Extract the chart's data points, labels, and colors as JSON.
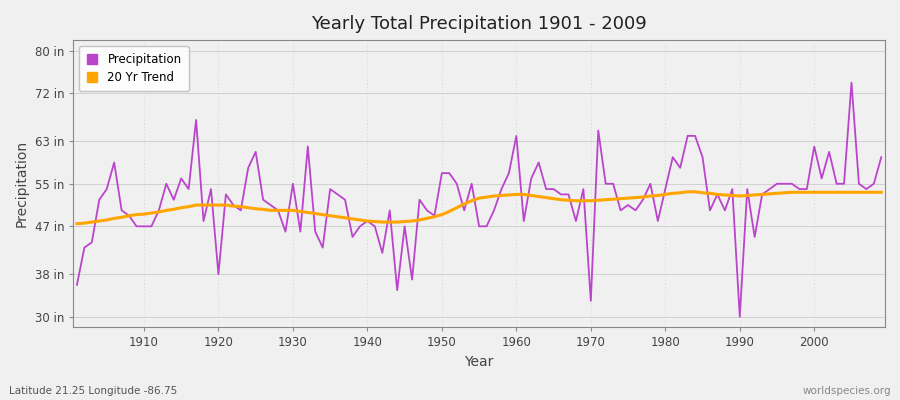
{
  "title": "Yearly Total Precipitation 1901 - 2009",
  "xlabel": "Year",
  "ylabel": "Precipitation",
  "subtitle": "Latitude 21.25 Longitude -86.75",
  "watermark": "worldspecies.org",
  "ylim": [
    28,
    82
  ],
  "yticks": [
    30,
    38,
    47,
    55,
    63,
    72,
    80
  ],
  "ytick_labels": [
    "30 in",
    "38 in",
    "47 in",
    "55 in",
    "63 in",
    "72 in",
    "80 in"
  ],
  "xlim": [
    1900.5,
    2009.5
  ],
  "xticks": [
    1910,
    1920,
    1930,
    1940,
    1950,
    1960,
    1970,
    1980,
    1990,
    2000
  ],
  "precip_color": "#BB44CC",
  "trend_color": "#FFA500",
  "fig_bg_color": "#F0F0F0",
  "plot_bg_color": "#F0F0F0",
  "years": [
    1901,
    1902,
    1903,
    1904,
    1905,
    1906,
    1907,
    1908,
    1909,
    1910,
    1911,
    1912,
    1913,
    1914,
    1915,
    1916,
    1917,
    1918,
    1919,
    1920,
    1921,
    1922,
    1923,
    1924,
    1925,
    1926,
    1927,
    1928,
    1929,
    1930,
    1931,
    1932,
    1933,
    1934,
    1935,
    1936,
    1937,
    1938,
    1939,
    1940,
    1941,
    1942,
    1943,
    1944,
    1945,
    1946,
    1947,
    1948,
    1949,
    1950,
    1951,
    1952,
    1953,
    1954,
    1955,
    1956,
    1957,
    1958,
    1959,
    1960,
    1961,
    1962,
    1963,
    1964,
    1965,
    1966,
    1967,
    1968,
    1969,
    1970,
    1971,
    1972,
    1973,
    1974,
    1975,
    1976,
    1977,
    1978,
    1979,
    1980,
    1981,
    1982,
    1983,
    1984,
    1985,
    1986,
    1987,
    1988,
    1989,
    1990,
    1991,
    1992,
    1993,
    1994,
    1995,
    1996,
    1997,
    1998,
    1999,
    2000,
    2001,
    2002,
    2003,
    2004,
    2005,
    2006,
    2007,
    2008,
    2009
  ],
  "precipitation": [
    36,
    43,
    44,
    52,
    54,
    59,
    50,
    49,
    47,
    47,
    47,
    50,
    55,
    52,
    56,
    54,
    67,
    48,
    54,
    38,
    53,
    51,
    50,
    58,
    61,
    52,
    51,
    50,
    46,
    55,
    46,
    62,
    46,
    43,
    54,
    53,
    52,
    45,
    47,
    48,
    47,
    42,
    50,
    35,
    47,
    37,
    52,
    50,
    49,
    57,
    57,
    55,
    50,
    55,
    47,
    47,
    50,
    54,
    57,
    64,
    48,
    56,
    59,
    54,
    54,
    53,
    53,
    48,
    54,
    33,
    65,
    55,
    55,
    50,
    51,
    50,
    52,
    55,
    48,
    54,
    60,
    58,
    64,
    64,
    60,
    50,
    53,
    50,
    54,
    30,
    54,
    45,
    53,
    54,
    55,
    55,
    55,
    54,
    54,
    62,
    56,
    61,
    55,
    55,
    74,
    55,
    54,
    55,
    60
  ],
  "trend": [
    47.5,
    47.6,
    47.8,
    48.0,
    48.2,
    48.5,
    48.7,
    49.0,
    49.2,
    49.3,
    49.5,
    49.7,
    50.0,
    50.2,
    50.5,
    50.7,
    51.0,
    51.0,
    51.0,
    51.0,
    51.0,
    50.8,
    50.7,
    50.5,
    50.3,
    50.2,
    50.0,
    50.0,
    50.0,
    50.0,
    49.8,
    49.6,
    49.4,
    49.2,
    49.0,
    48.8,
    48.6,
    48.4,
    48.2,
    48.0,
    47.9,
    47.8,
    47.8,
    47.8,
    47.9,
    48.0,
    48.2,
    48.5,
    48.8,
    49.2,
    49.8,
    50.5,
    51.2,
    51.8,
    52.3,
    52.5,
    52.7,
    52.8,
    52.9,
    53.0,
    53.0,
    52.8,
    52.6,
    52.4,
    52.2,
    52.0,
    51.9,
    51.8,
    51.8,
    51.8,
    51.9,
    52.0,
    52.1,
    52.2,
    52.3,
    52.4,
    52.5,
    52.7,
    52.8,
    53.0,
    53.2,
    53.3,
    53.5,
    53.5,
    53.3,
    53.2,
    53.0,
    52.9,
    52.8,
    52.7,
    52.8,
    52.9,
    53.0,
    53.1,
    53.2,
    53.3,
    53.4,
    53.4,
    53.4,
    53.4,
    53.4,
    53.4,
    53.4,
    53.4,
    53.4,
    53.4,
    53.4,
    53.4,
    53.4
  ]
}
